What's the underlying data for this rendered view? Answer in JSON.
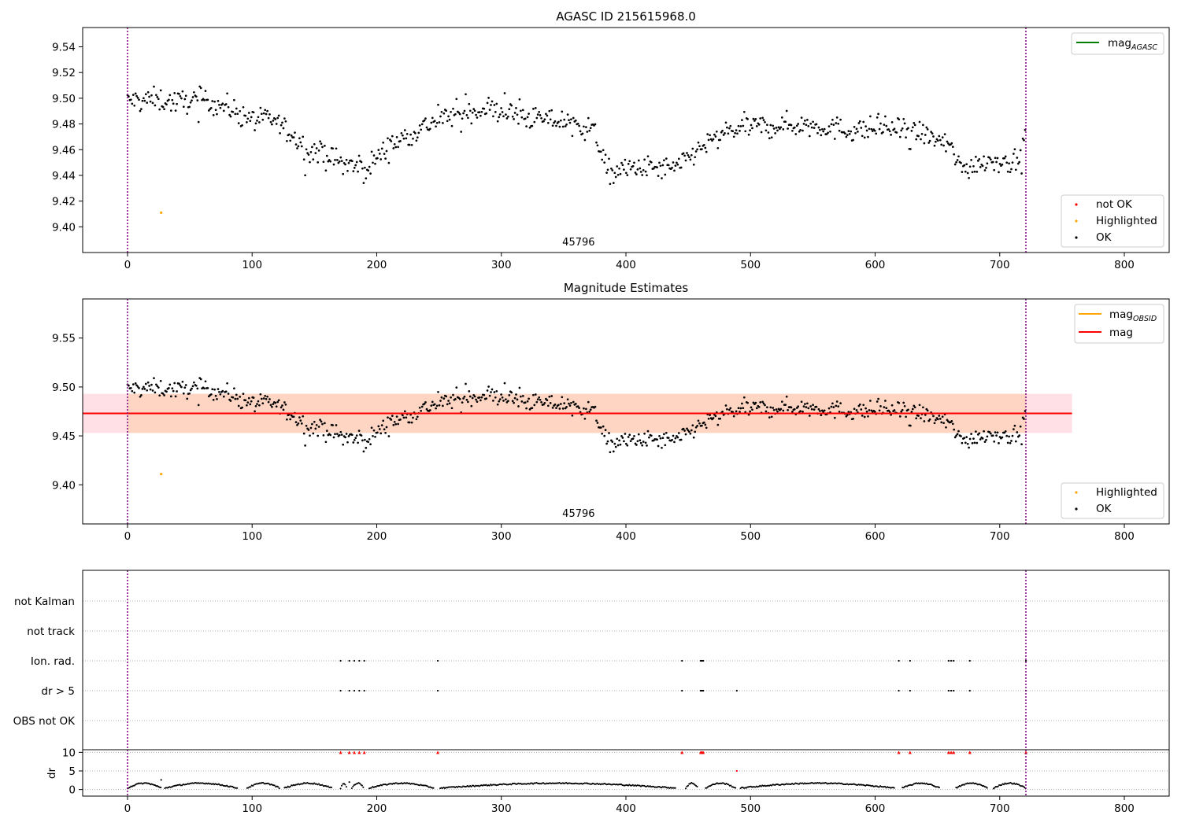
{
  "chart_data": [
    {
      "type": "scatter",
      "title": "AGASC ID 215615968.0",
      "xlim": [
        -36,
        836
      ],
      "ylim": [
        9.38,
        9.555
      ],
      "x_ticks": [
        0,
        100,
        200,
        300,
        400,
        500,
        600,
        700,
        800
      ],
      "y_ticks": [
        9.4,
        9.42,
        9.44,
        9.46,
        9.48,
        9.5,
        9.52,
        9.54
      ],
      "vlines": [
        0,
        721
      ],
      "annotation": "45796",
      "annotation_x": 362,
      "highlighted": [
        {
          "x": 27,
          "y": 9.411
        }
      ],
      "trend": [
        [
          0,
          9.498
        ],
        [
          20,
          9.499
        ],
        [
          40,
          9.497
        ],
        [
          60,
          9.499
        ],
        [
          80,
          9.493
        ],
        [
          100,
          9.484
        ],
        [
          120,
          9.482
        ],
        [
          140,
          9.463
        ],
        [
          160,
          9.455
        ],
        [
          180,
          9.447
        ],
        [
          190,
          9.444
        ],
        [
          210,
          9.463
        ],
        [
          240,
          9.479
        ],
        [
          260,
          9.487
        ],
        [
          290,
          9.492
        ],
        [
          320,
          9.485
        ],
        [
          350,
          9.482
        ],
        [
          375,
          9.475
        ],
        [
          385,
          9.442
        ],
        [
          410,
          9.446
        ],
        [
          440,
          9.445
        ],
        [
          460,
          9.462
        ],
        [
          490,
          9.477
        ],
        [
          520,
          9.479
        ],
        [
          550,
          9.479
        ],
        [
          580,
          9.475
        ],
        [
          610,
          9.477
        ],
        [
          640,
          9.472
        ],
        [
          660,
          9.462
        ],
        [
          670,
          9.445
        ],
        [
          690,
          9.452
        ],
        [
          715,
          9.45
        ],
        [
          721,
          9.472
        ]
      ],
      "legend_lines": [
        {
          "label": "mag",
          "sub": "AGASC",
          "color": "#008000"
        }
      ],
      "legend_points": [
        {
          "label": "not OK",
          "color": "#ff0000"
        },
        {
          "label": "Highlighted",
          "color": "#ffa500"
        },
        {
          "label": "OK",
          "color": "#000000"
        }
      ]
    },
    {
      "type": "scatter",
      "title": "Magnitude Estimates",
      "xlim": [
        -36,
        836
      ],
      "ylim": [
        9.36,
        9.59
      ],
      "x_ticks": [
        0,
        100,
        200,
        300,
        400,
        500,
        600,
        700,
        800
      ],
      "y_ticks": [
        9.4,
        9.45,
        9.5,
        9.55
      ],
      "vlines": [
        0,
        721
      ],
      "annotation": "45796",
      "annotation_x": 362,
      "mag": 9.473,
      "band": [
        9.453,
        9.493
      ],
      "band_x": [
        -36,
        758
      ],
      "highlighted": [
        {
          "x": 27,
          "y": 9.411
        }
      ],
      "legend_lines": [
        {
          "label": "mag",
          "sub": "OBSID",
          "color": "#ffa500"
        },
        {
          "label": "mag",
          "sub": "",
          "color": "#ff0000"
        }
      ],
      "legend_points": [
        {
          "label": "Highlighted",
          "color": "#ffa500"
        },
        {
          "label": "OK",
          "color": "#000000"
        }
      ]
    },
    {
      "type": "scatter",
      "xlim": [
        -36,
        836
      ],
      "x_ticks": [
        0,
        100,
        200,
        300,
        400,
        500,
        600,
        700,
        800
      ],
      "vlines": [
        0,
        721
      ],
      "flag_labels": [
        "not Kalman",
        "not track",
        "Ion. rad.",
        "dr > 5",
        "OBS not OK"
      ],
      "flag_events": {
        "Ion. rad.": [
          171,
          178,
          182,
          186,
          190,
          249,
          445,
          460,
          461,
          462,
          619,
          628,
          659,
          661,
          663,
          676,
          721
        ],
        "dr > 5": [
          171,
          178,
          182,
          186,
          190,
          249,
          445,
          460,
          461,
          462,
          489,
          619,
          628,
          659,
          661,
          663,
          676,
          721
        ]
      },
      "dr_ylabel": "dr",
      "dr_ticks": [
        0,
        5,
        10
      ],
      "dr_ylim": [
        -0.5,
        10.5
      ],
      "dr_clipped_x": [
        171,
        178,
        182,
        186,
        190,
        249,
        445,
        460,
        461,
        462,
        619,
        628,
        659,
        661,
        663,
        676,
        721
      ],
      "dr_outliers": [
        {
          "x": 489,
          "y": 5.0
        },
        {
          "x": 27,
          "y": 2.6
        },
        {
          "x": 178,
          "y": 2.0
        }
      ]
    }
  ],
  "colors": {
    "ok": "#000000",
    "not_ok": "#ff0000",
    "highlighted": "#ffa500",
    "mag_line": "#ff0000",
    "band_outer": "#ffe0e6",
    "band_inner": "#fdd5c2",
    "vline": "#800080",
    "agasc_line": "#008000"
  }
}
